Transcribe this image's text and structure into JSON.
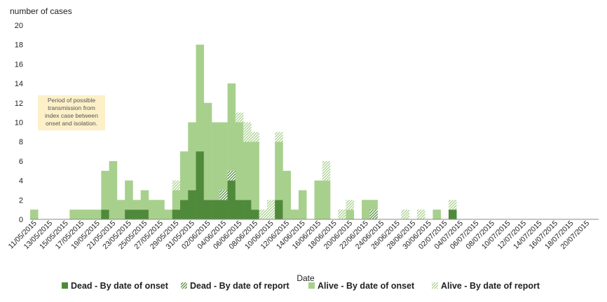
{
  "chart_data": {
    "type": "bar",
    "stacked": true,
    "ylabel": "number of cases",
    "xlabel": "Date",
    "ylim": [
      0,
      20
    ],
    "yticks": [
      0,
      2,
      4,
      6,
      8,
      10,
      12,
      14,
      16,
      18,
      20
    ],
    "grid": false,
    "legend_position": "bottom",
    "x": [
      "11/05/2015",
      "12/05/2015",
      "13/05/2015",
      "14/05/2015",
      "15/05/2015",
      "16/05/2015",
      "17/05/2015",
      "18/05/2015",
      "19/05/2015",
      "20/05/2015",
      "21/05/2015",
      "22/05/2015",
      "23/05/2015",
      "24/05/2015",
      "25/05/2015",
      "26/05/2015",
      "27/05/2015",
      "28/05/2015",
      "29/05/2015",
      "30/05/2015",
      "31/05/2015",
      "01/06/2015",
      "02/06/2015",
      "03/06/2015",
      "04/06/2015",
      "05/06/2015",
      "06/06/2015",
      "07/06/2015",
      "08/06/2015",
      "09/06/2015",
      "10/06/2015",
      "11/06/2015",
      "12/06/2015",
      "13/06/2015",
      "14/06/2015",
      "15/06/2015",
      "16/06/2015",
      "17/06/2015",
      "18/06/2015",
      "19/06/2015",
      "20/06/2015",
      "21/06/2015",
      "22/06/2015",
      "23/06/2015",
      "24/06/2015",
      "25/06/2015",
      "26/06/2015",
      "27/06/2015",
      "28/06/2015",
      "29/06/2015",
      "30/06/2015",
      "01/07/2015",
      "02/07/2015",
      "03/07/2015",
      "04/07/2015",
      "05/07/2015",
      "06/07/2015",
      "07/07/2015",
      "08/07/2015",
      "09/07/2015",
      "10/07/2015",
      "11/07/2015",
      "12/07/2015",
      "13/07/2015",
      "14/07/2015",
      "15/07/2015",
      "16/07/2015",
      "17/07/2015",
      "18/07/2015",
      "19/07/2015",
      "20/07/2015",
      "21/07/2015"
    ],
    "xtick_labels": [
      "11/05/2015",
      "13/05/2015",
      "15/05/2015",
      "17/05/2015",
      "19/05/2015",
      "21/05/2015",
      "23/05/2015",
      "25/05/2015",
      "27/05/2015",
      "29/05/2015",
      "31/05/2015",
      "02/06/2015",
      "04/06/2015",
      "06/06/2015",
      "08/06/2015",
      "10/06/2015",
      "12/06/2015",
      "14/06/2015",
      "16/06/2015",
      "18/06/2015",
      "20/06/2015",
      "22/06/2015",
      "24/06/2015",
      "26/06/2015",
      "28/06/2015",
      "30/06/2015",
      "02/07/2015",
      "04/07/2015",
      "06/07/2015",
      "08/07/2015",
      "10/07/2015",
      "12/07/2015",
      "14/07/2015",
      "16/07/2015",
      "18/07/2015",
      "20/07/2015"
    ],
    "series": [
      {
        "name": "Dead - By date of onset",
        "color": "#4f8a3a",
        "pattern": "solid",
        "values": [
          0,
          0,
          0,
          0,
          0,
          0,
          0,
          0,
          0,
          1,
          0,
          0,
          1,
          1,
          1,
          0,
          0,
          0,
          1,
          2,
          3,
          7,
          2,
          2,
          2,
          4,
          2,
          2,
          1,
          0,
          0,
          2,
          0,
          0,
          0,
          0,
          0,
          0,
          0,
          0,
          0,
          0,
          0,
          0,
          0,
          0,
          0,
          0,
          0,
          0,
          0,
          0,
          0,
          1,
          0,
          0,
          0,
          0,
          0,
          0,
          0,
          0,
          0,
          0,
          0,
          0,
          0,
          0,
          0,
          0,
          0,
          0
        ]
      },
      {
        "name": "Dead - By date of report",
        "color": "#4f8a3a",
        "pattern": "hatch",
        "values": [
          0,
          0,
          0,
          0,
          0,
          0,
          0,
          0,
          0,
          0,
          0,
          0,
          0,
          0,
          0,
          0,
          0,
          0,
          0,
          0,
          0,
          0,
          0,
          0,
          1,
          1,
          0,
          0,
          0,
          0,
          0,
          0,
          0,
          0,
          0,
          0,
          0,
          0,
          0,
          0,
          0,
          0,
          0,
          1,
          0,
          0,
          0,
          0,
          0,
          0,
          0,
          0,
          0,
          0,
          0,
          0,
          0,
          0,
          0,
          0,
          0,
          0,
          0,
          0,
          0,
          0,
          0,
          0,
          0,
          0,
          0,
          0
        ]
      },
      {
        "name": "Alive - By date of onset",
        "color": "#a8d08d",
        "pattern": "solid",
        "values": [
          1,
          0,
          0,
          0,
          0,
          1,
          1,
          1,
          1,
          4,
          6,
          2,
          3,
          1,
          2,
          2,
          2,
          1,
          2,
          5,
          7,
          11,
          10,
          8,
          7,
          9,
          8,
          6,
          7,
          0,
          0,
          6,
          5,
          1,
          3,
          0,
          4,
          4,
          0,
          0,
          1,
          0,
          2,
          1,
          0,
          0,
          0,
          0,
          0,
          0,
          0,
          1,
          0,
          0,
          0,
          0,
          0,
          0,
          0,
          0,
          0,
          0,
          0,
          0,
          0,
          0,
          0,
          0,
          0,
          0,
          0,
          0
        ]
      },
      {
        "name": "Alive - By date of report",
        "color": "#a8d08d",
        "pattern": "hatch",
        "values": [
          0,
          0,
          0,
          0,
          0,
          0,
          0,
          0,
          0,
          0,
          0,
          0,
          0,
          0,
          0,
          0,
          0,
          0,
          1,
          0,
          0,
          0,
          0,
          0,
          0,
          0,
          1,
          2,
          1,
          1,
          2,
          1,
          0,
          0,
          0,
          0,
          0,
          2,
          0,
          1,
          1,
          0,
          0,
          0,
          0,
          0,
          0,
          1,
          0,
          1,
          0,
          0,
          0,
          1,
          0,
          0,
          0,
          0,
          0,
          0,
          0,
          0,
          0,
          0,
          0,
          0,
          0,
          0,
          0,
          0,
          0,
          0
        ]
      }
    ],
    "annotation": "Period of possible transmission from index case between onset and isolation."
  }
}
